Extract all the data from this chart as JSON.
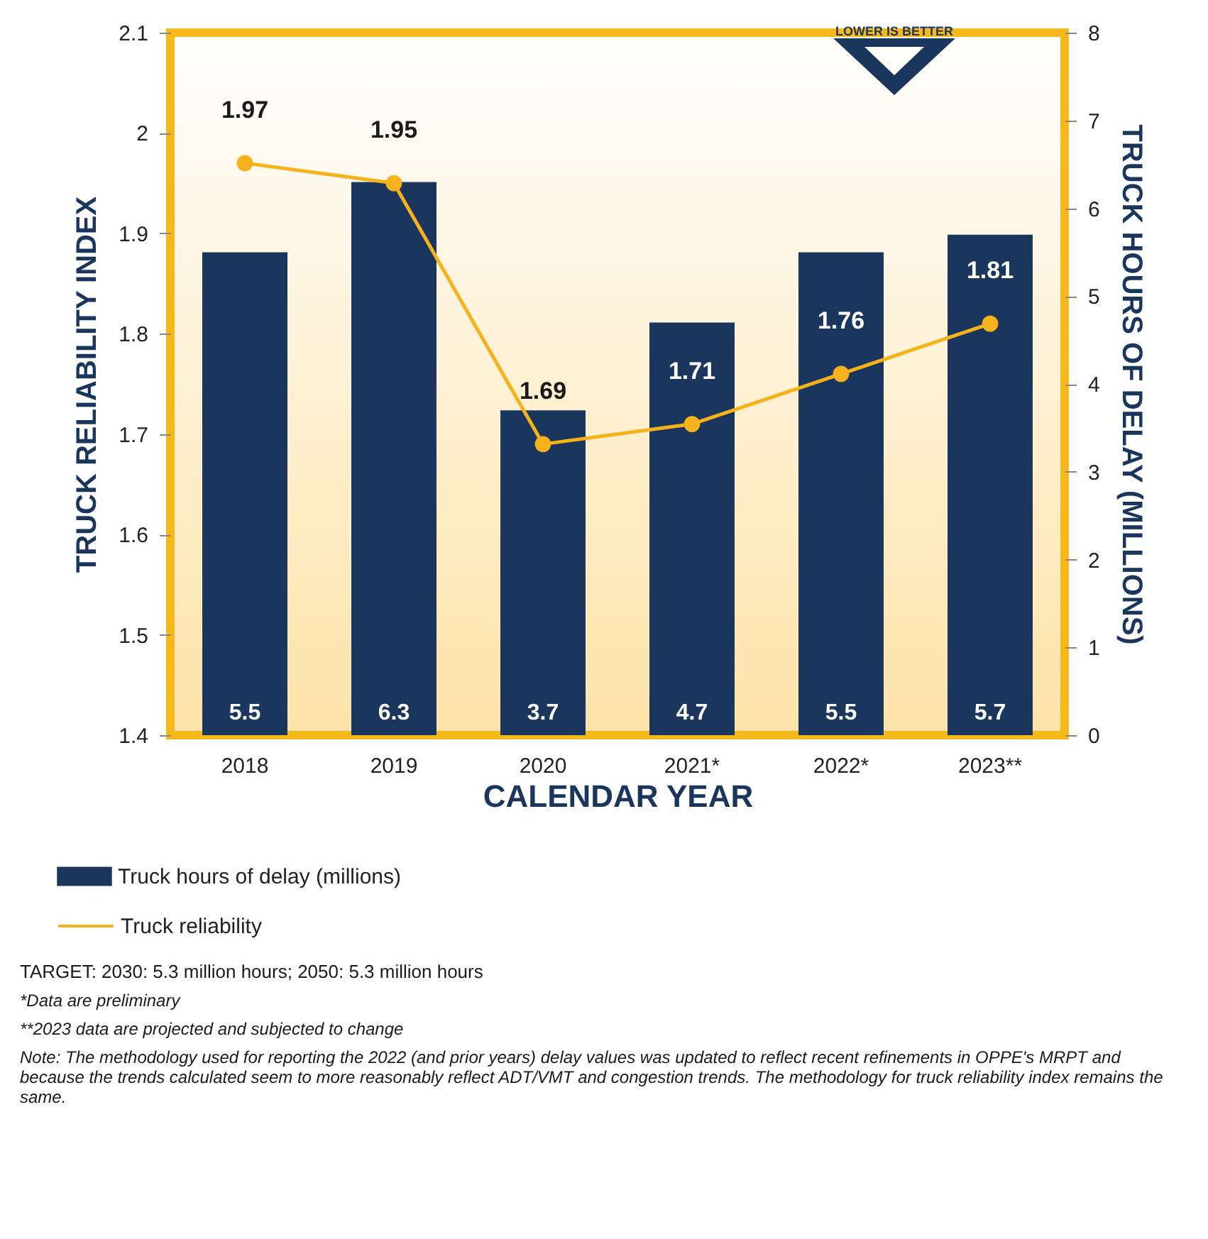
{
  "chart_data": {
    "type": "bar",
    "xlabel": "CALENDAR YEAR",
    "ylabel": "TRUCK RELIABILITY INDEX",
    "y2label": "TRUCK HOURS OF DELAY (MILLIONS)",
    "categories": [
      "2018",
      "2019",
      "2020",
      "2021*",
      "2022*",
      "2023**"
    ],
    "series": [
      {
        "name": "Truck hours of delay (millions)",
        "axis": "y2",
        "color": "#1b365d",
        "values": [
          5.5,
          6.3,
          3.7,
          4.7,
          5.5,
          5.7
        ]
      },
      {
        "name": "Truck reliability",
        "type": "line",
        "color": "#f5b21b",
        "values": [
          1.97,
          1.95,
          1.69,
          1.71,
          1.76,
          1.81
        ]
      }
    ],
    "ylim": [
      1.4,
      2.1
    ],
    "yticks": [
      1.4,
      1.5,
      1.6,
      1.7,
      1.8,
      1.9,
      2.0,
      2.1
    ],
    "y2lim": [
      0,
      8
    ],
    "y2ticks": [
      0,
      1,
      2,
      3,
      4,
      5,
      6,
      7,
      8
    ],
    "data_labels": true,
    "marker": "circle",
    "line_style": "solid",
    "legend": "bottom",
    "grid": false,
    "annotations": [
      "LOWER IS BETTER",
      "TARGET: 2030: 5.3 million hours; 2050: 5.3 million hours",
      "*Data are preliminary",
      "**2023 data are projected and subjected to change",
      "Note: The methodology used for reporting the 2022 (and prior years) delay values was updated to reflect recent refinements in OPPE's MRPT and because the trends calculated seem to more reasonably reflect ADT/VMT and congestion trends. The methodology for truck reliability index remains the same."
    ]
  }
}
